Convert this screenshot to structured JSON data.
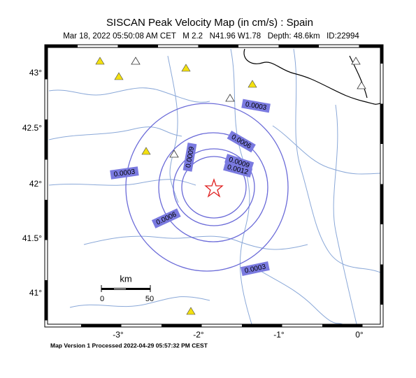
{
  "header": {
    "title": "SISCAN Peak Velocity Map (in cm/s) : Spain",
    "subtitle": "Mar 18, 2022 05:50:08 AM CET   M 2.2   N41.96 W1.78   Depth: 48.6km   ID:22994"
  },
  "map": {
    "lon_labels": [
      "-3°",
      "-2°",
      "-1°",
      "0°"
    ],
    "lat_labels": [
      "43°",
      "42.5°",
      "42°",
      "41.5°",
      "41°"
    ],
    "contour_labels": [
      "0.0003",
      "0.0003",
      "0.0003",
      "0.0006",
      "0.0006",
      "0.0009",
      "0.0009",
      "0.0012"
    ],
    "scale": {
      "unit": "km",
      "labels": [
        "0",
        "50"
      ]
    }
  },
  "footer": "Map Version 1 Processed 2022-04-29 05:57:32 PM CEST"
}
